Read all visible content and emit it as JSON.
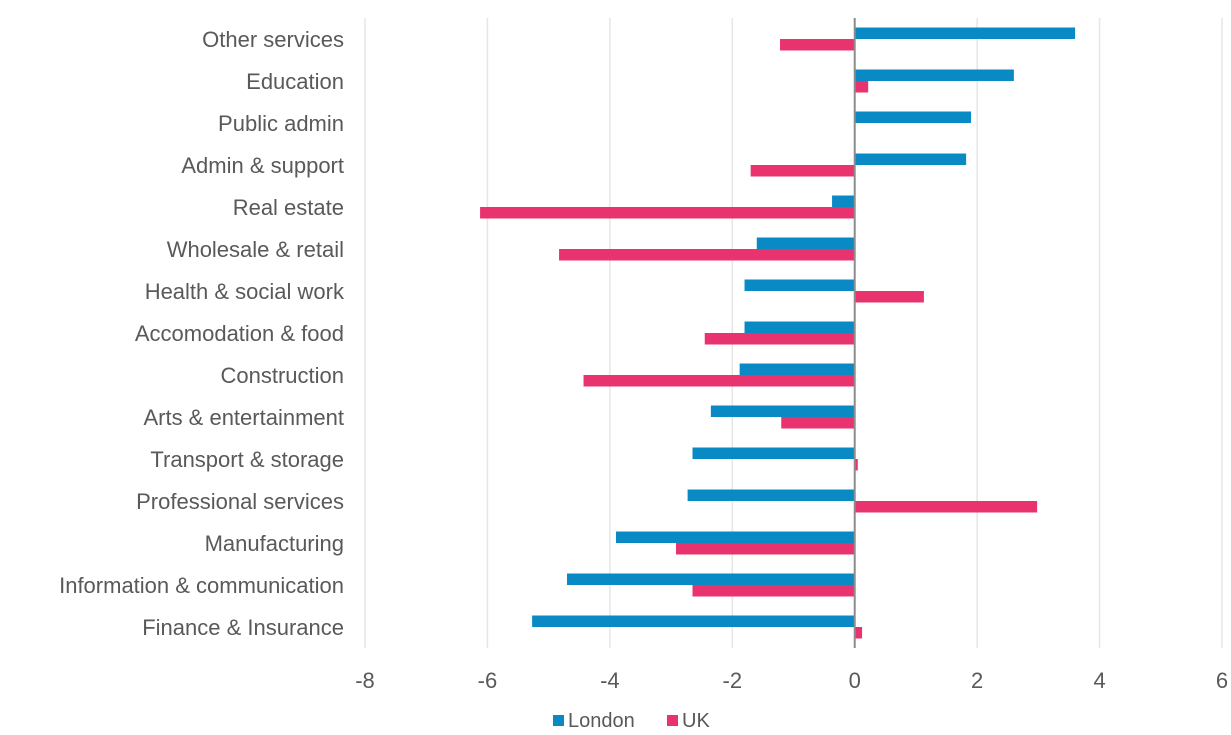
{
  "chart_data": {
    "type": "bar",
    "orientation": "horizontal",
    "categories": [
      "Other services",
      "Education",
      "Public admin",
      "Admin & support",
      "Real estate",
      "Wholesale & retail",
      "Health & social work",
      "Accomodation & food",
      "Construction",
      "Arts & entertainment",
      "Transport & storage",
      "Professional services",
      "Manufacturing",
      "Information & communication",
      "Finance & Insurance"
    ],
    "series": [
      {
        "name": "London",
        "color": "#0a8ac4",
        "values": [
          3.6,
          2.6,
          1.9,
          1.82,
          -0.37,
          -1.6,
          -1.8,
          -1.8,
          -1.88,
          -2.35,
          -2.65,
          -2.73,
          -3.9,
          -4.7,
          -5.27
        ]
      },
      {
        "name": "UK",
        "color": "#e8336f",
        "values": [
          -1.22,
          0.22,
          0.0,
          -1.7,
          -6.12,
          -4.83,
          1.13,
          -2.45,
          -4.43,
          -1.2,
          0.05,
          2.98,
          -2.92,
          -2.65,
          0.12
        ]
      }
    ],
    "xlim": [
      -8,
      6
    ],
    "xticks": [
      -8,
      -6,
      -4,
      -2,
      0,
      2,
      4,
      6
    ],
    "xtick_labels": [
      "-8",
      "-6",
      "-4",
      "-2",
      "0",
      "2",
      "4",
      "6"
    ],
    "title": "",
    "xlabel": "",
    "ylabel": "",
    "grid": "vertical",
    "legend_position": "bottom"
  }
}
